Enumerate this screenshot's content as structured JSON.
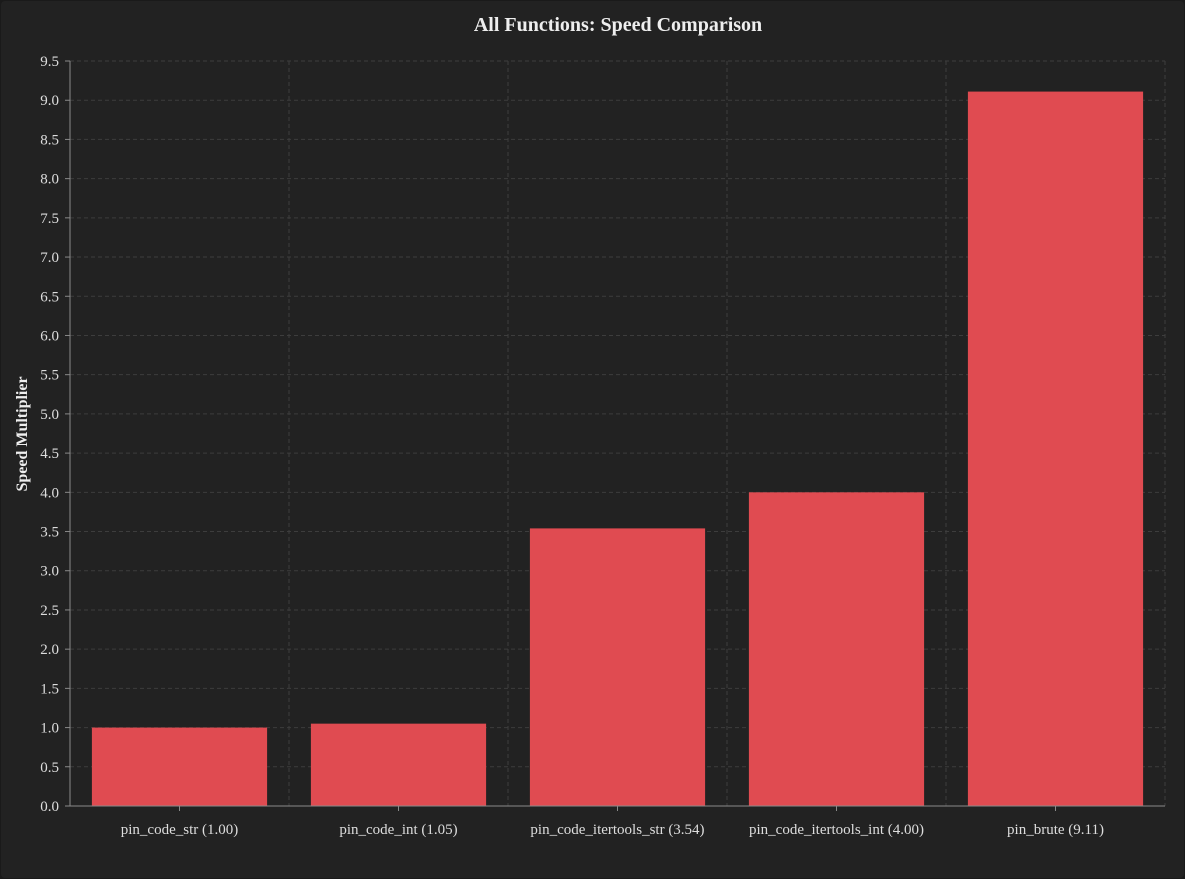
{
  "chart_data": {
    "type": "bar",
    "title": "All Functions: Speed Comparison",
    "xlabel": "",
    "ylabel": "Speed Multiplier",
    "categories": [
      "pin_code_str (1.00)",
      "pin_code_int (1.05)",
      "pin_code_itertools_str (3.54)",
      "pin_code_itertools_int (4.00)",
      "pin_brute (9.11)"
    ],
    "values": [
      1.0,
      1.05,
      3.54,
      4.0,
      9.11
    ],
    "ylim": [
      0,
      9.5
    ],
    "yticks": [
      "0.0",
      "0.5",
      "1.0",
      "1.5",
      "2.0",
      "2.5",
      "3.0",
      "3.5",
      "4.0",
      "4.5",
      "5.0",
      "5.5",
      "6.0",
      "6.5",
      "7.0",
      "7.5",
      "8.0",
      "8.5",
      "9.0",
      "9.5"
    ],
    "grid": true,
    "colors": {
      "bar": "#e04b51",
      "background": "#222222"
    }
  }
}
